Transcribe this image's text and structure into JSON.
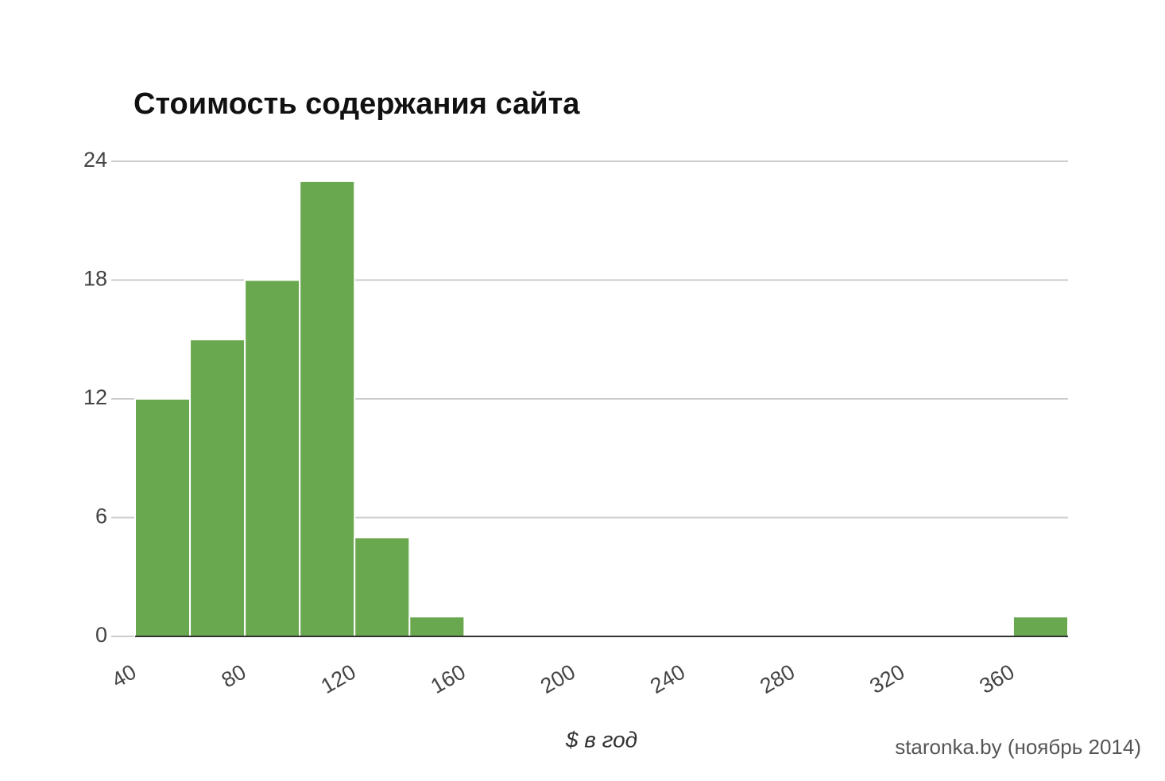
{
  "chart_data": {
    "type": "histogram",
    "title": "Стоимость содержания сайта",
    "x_label": "$ в год",
    "source": "staronka.by (ноябрь 2014)",
    "bins": [
      40,
      60,
      80,
      100,
      120,
      140,
      160,
      180,
      200,
      220,
      240,
      260,
      280,
      300,
      320,
      340,
      360,
      380
    ],
    "values": [
      12,
      15,
      18,
      23,
      5,
      1,
      0,
      0,
      0,
      0,
      0,
      0,
      0,
      0,
      0,
      0,
      1
    ],
    "color": "#6aa84f",
    "xlim": [
      40,
      380
    ],
    "xticks": [
      40,
      80,
      120,
      160,
      200,
      240,
      280,
      320,
      360
    ],
    "ylim": [
      0,
      24
    ],
    "yticks": [
      0,
      6,
      12,
      18,
      24
    ],
    "grid": true
  }
}
